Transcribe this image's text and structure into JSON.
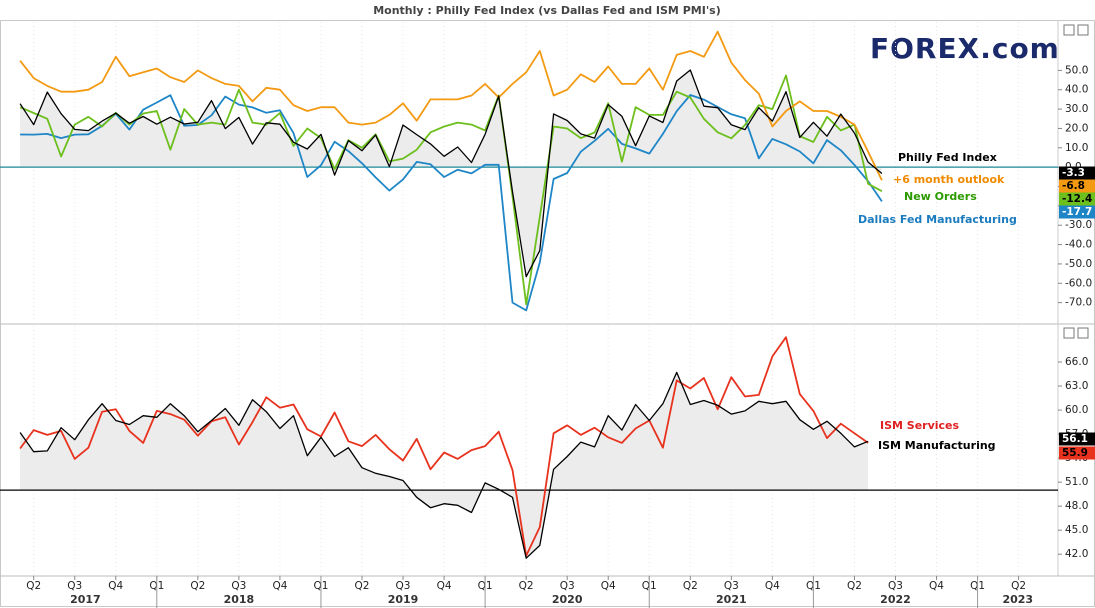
{
  "logo": "FOREX.com",
  "chart_data": [
    {
      "type": "line",
      "title": "Monthly : Philly Fed Index (vs Dallas Fed and ISM PMI's)",
      "x": [
        2017.167,
        2017.25,
        2017.333,
        2017.417,
        2017.5,
        2017.583,
        2017.667,
        2017.75,
        2017.833,
        2017.917,
        2018,
        2018.083,
        2018.167,
        2018.25,
        2018.333,
        2018.417,
        2018.5,
        2018.583,
        2018.667,
        2018.75,
        2018.833,
        2018.917,
        2019,
        2019.083,
        2019.167,
        2019.25,
        2019.333,
        2019.417,
        2019.5,
        2019.583,
        2019.667,
        2019.75,
        2019.833,
        2019.917,
        2020,
        2020.083,
        2020.167,
        2020.25,
        2020.333,
        2020.417,
        2020.5,
        2020.583,
        2020.667,
        2020.75,
        2020.833,
        2020.917,
        2021,
        2021.083,
        2021.167,
        2021.25,
        2021.333,
        2021.417,
        2021.5,
        2021.583,
        2021.667,
        2021.75,
        2021.833,
        2021.917,
        2022,
        2022.083,
        2022.167,
        2022.25,
        2022.333,
        2022.417
      ],
      "xlim": [
        2017.13,
        2023.49
      ],
      "ylim": [
        -80,
        75
      ],
      "yticks": [
        {
          "value": 50,
          "label": "50.0"
        },
        {
          "value": 40,
          "label": "40.0"
        },
        {
          "value": 30,
          "label": "30.0"
        },
        {
          "value": 20,
          "label": "20.0"
        },
        {
          "value": 10,
          "label": "10.0"
        },
        {
          "value": 0,
          "label": "0.0"
        },
        {
          "value": -10,
          "label": "-10.0"
        },
        {
          "value": -20,
          "label": "-20.0"
        },
        {
          "value": -30,
          "label": "-30.0"
        },
        {
          "value": -40,
          "label": "-40.0"
        },
        {
          "value": -50,
          "label": "-50.0"
        },
        {
          "value": -60,
          "label": "-60.0"
        },
        {
          "value": -70,
          "label": "-70.0"
        }
      ],
      "baseline": 0,
      "baseline_color": "#1a8a9a",
      "fill_series": 0,
      "fill_color": "#ececec",
      "series": [
        {
          "name": "Philly Fed Index",
          "color": "#000000",
          "label_color": "#000000",
          "values": [
            32.8,
            22,
            38.8,
            27.6,
            19.5,
            18.9,
            23.8,
            27.9,
            22.7,
            26.2,
            22.2,
            25.8,
            22.3,
            23.2,
            34.4,
            19.9,
            25.7,
            11.9,
            22.9,
            22.2,
            12.9,
            9.4,
            17,
            -4.1,
            13.7,
            8.5,
            16.6,
            0.3,
            21.8,
            16.8,
            12,
            5.6,
            10.4,
            2.4,
            17,
            36.7,
            -12.7,
            -56.6,
            -43.1,
            27.5,
            24.1,
            17.2,
            15,
            32.3,
            26.3,
            11.1,
            26.5,
            23.1,
            44.5,
            50.2,
            31.5,
            30.7,
            21.9,
            19.4,
            30.7,
            23.8,
            39,
            15.4,
            23.2,
            16,
            27.4,
            17.6,
            2.6,
            -3.3
          ]
        },
        {
          "name": "+6 month outlook",
          "color": "#f39a12",
          "label_color": "#f08a00",
          "values": [
            55,
            46,
            42,
            39,
            39,
            40,
            44,
            57,
            47,
            49,
            51,
            46.5,
            44,
            50,
            46,
            43,
            42,
            34,
            41,
            40,
            32,
            29,
            31,
            31,
            23,
            22,
            23,
            27,
            33,
            24,
            35,
            35,
            35,
            37,
            43,
            36,
            43,
            49,
            60,
            37,
            40,
            48,
            44,
            52,
            43,
            43,
            51,
            40,
            58,
            60,
            57,
            70,
            54,
            45,
            38,
            21,
            29,
            34,
            29,
            29,
            26,
            22,
            8,
            -6.8
          ]
        },
        {
          "name": "New Orders",
          "color": "#6cbf1c",
          "label_color": "#2c9a00",
          "values": [
            31,
            28,
            25,
            5.5,
            22,
            26,
            21,
            28.1,
            22,
            27.7,
            29,
            9,
            30,
            22,
            23,
            22,
            40,
            23,
            22,
            28,
            11,
            20,
            15,
            -1,
            14,
            10,
            17,
            3,
            4.4,
            9,
            18,
            21,
            23,
            22,
            19,
            37,
            -15,
            -70.9,
            -25.7,
            21,
            20,
            15,
            17.9,
            33,
            2.8,
            31,
            27,
            27,
            39,
            36,
            25,
            18,
            14.9,
            21.8,
            32,
            30,
            47.4,
            16,
            13,
            26,
            19,
            22,
            -8.6,
            -12.4
          ]
        },
        {
          "name": "Dallas Fed Manufacturing",
          "color": "#1e86c6",
          "label_color": "#1a7bbf",
          "values": [
            16.9,
            16.8,
            17.2,
            15,
            16.8,
            17,
            21.3,
            27.6,
            19.4,
            29.7,
            33.4,
            37.2,
            21.4,
            21.8,
            26.8,
            36.5,
            32.3,
            30.9,
            28.1,
            29.4,
            17.6,
            -5.1,
            1,
            13.1,
            8.3,
            2,
            -5.3,
            -12.1,
            -6.3,
            2.7,
            1.5,
            -5.1,
            -1.3,
            -3.2,
            1.2,
            1.2,
            -70,
            -74,
            -49.2,
            -6.1,
            -3,
            8,
            13.6,
            19.8,
            12,
            9.7,
            7,
            17.2,
            28.9,
            37.3,
            34.9,
            31.1,
            27.3,
            25.3,
            4.6,
            14.6,
            11.8,
            8.1,
            2,
            14,
            8.7,
            1.1,
            -7.3,
            -17.7
          ]
        }
      ]
    },
    {
      "type": "line",
      "x": [
        2017.167,
        2017.25,
        2017.333,
        2017.417,
        2017.5,
        2017.583,
        2017.667,
        2017.75,
        2017.833,
        2017.917,
        2018,
        2018.083,
        2018.167,
        2018.25,
        2018.333,
        2018.417,
        2018.5,
        2018.583,
        2018.667,
        2018.75,
        2018.833,
        2018.917,
        2019,
        2019.083,
        2019.167,
        2019.25,
        2019.333,
        2019.417,
        2019.5,
        2019.583,
        2019.667,
        2019.75,
        2019.833,
        2019.917,
        2020,
        2020.083,
        2020.167,
        2020.25,
        2020.333,
        2020.417,
        2020.5,
        2020.583,
        2020.667,
        2020.75,
        2020.833,
        2020.917,
        2021,
        2021.083,
        2021.167,
        2021.25,
        2021.333,
        2021.417,
        2021.5,
        2021.583,
        2021.667,
        2021.75,
        2021.833,
        2021.917,
        2022,
        2022.083,
        2022.167,
        2022.25,
        2022.333
      ],
      "xlim": [
        2017.13,
        2023.49
      ],
      "xticks": [
        {
          "value": 2017.25,
          "label": "Q2"
        },
        {
          "value": 2017.5,
          "label": "Q3"
        },
        {
          "value": 2017.75,
          "label": "Q4"
        },
        {
          "value": 2018,
          "label": "Q1"
        },
        {
          "value": 2018.25,
          "label": "Q2"
        },
        {
          "value": 2018.5,
          "label": "Q3"
        },
        {
          "value": 2018.75,
          "label": "Q4"
        },
        {
          "value": 2019,
          "label": "Q1"
        },
        {
          "value": 2019.25,
          "label": "Q2"
        },
        {
          "value": 2019.5,
          "label": "Q3"
        },
        {
          "value": 2019.75,
          "label": "Q4"
        },
        {
          "value": 2020,
          "label": "Q1"
        },
        {
          "value": 2020.25,
          "label": "Q2"
        },
        {
          "value": 2020.5,
          "label": "Q3"
        },
        {
          "value": 2020.75,
          "label": "Q4"
        },
        {
          "value": 2021,
          "label": "Q1"
        },
        {
          "value": 2021.25,
          "label": "Q2"
        },
        {
          "value": 2021.5,
          "label": "Q3"
        },
        {
          "value": 2021.75,
          "label": "Q4"
        },
        {
          "value": 2022,
          "label": "Q1"
        },
        {
          "value": 2022.25,
          "label": "Q2"
        },
        {
          "value": 2022.5,
          "label": "Q3"
        },
        {
          "value": 2022.75,
          "label": "Q4"
        },
        {
          "value": 2023,
          "label": "Q1"
        },
        {
          "value": 2023.25,
          "label": "Q2"
        }
      ],
      "year_ticks": [
        2017,
        2018,
        2019,
        2020,
        2021,
        2022,
        2023
      ],
      "ylim": [
        39.4,
        70.5
      ],
      "yticks": [
        {
          "value": 66,
          "label": "66.0"
        },
        {
          "value": 63,
          "label": "63.0"
        },
        {
          "value": 60,
          "label": "60.0"
        },
        {
          "value": 57,
          "label": "57.0"
        },
        {
          "value": 54,
          "label": "54.0"
        },
        {
          "value": 51,
          "label": "51.0"
        },
        {
          "value": 48,
          "label": "48.0"
        },
        {
          "value": 45,
          "label": "45.0"
        },
        {
          "value": 42,
          "label": "42.0"
        }
      ],
      "baseline": 50,
      "baseline_color": "#000000",
      "fill_series": 0,
      "fill_color": "#ececec",
      "series": [
        {
          "name": "ISM Manufacturing",
          "color": "#000000",
          "label_color": "#000000",
          "values": [
            57.2,
            54.8,
            54.9,
            57.8,
            56.3,
            58.8,
            60.8,
            58.7,
            58.2,
            59.3,
            59.1,
            60.8,
            59.3,
            57.3,
            58.7,
            60.2,
            58.1,
            61.3,
            59.8,
            57.7,
            59.3,
            54.3,
            56.6,
            54.2,
            55.3,
            52.8,
            52.1,
            51.7,
            51.2,
            49.1,
            47.8,
            48.3,
            48.1,
            47.2,
            50.9,
            50.1,
            49.1,
            41.5,
            43.1,
            52.6,
            54.2,
            56,
            55.4,
            59.3,
            57.5,
            60.7,
            58.7,
            60.8,
            64.7,
            60.7,
            61.2,
            60.6,
            59.5,
            59.9,
            61.1,
            60.8,
            61.1,
            58.8,
            57.6,
            58.6,
            57.1,
            55.4,
            56.1
          ]
        },
        {
          "name": "ISM Services",
          "color": "#e8321e",
          "label_color": "#e02020",
          "values": [
            55.2,
            57.5,
            56.9,
            57.4,
            53.9,
            55.3,
            59.8,
            60.1,
            57.4,
            55.9,
            59.9,
            59.5,
            58.8,
            56.8,
            58.6,
            59.1,
            55.7,
            58.5,
            61.6,
            60.3,
            60.7,
            57.6,
            56.7,
            59.7,
            56.1,
            55.5,
            56.9,
            55.1,
            53.7,
            56.4,
            52.6,
            54.7,
            53.9,
            55,
            55.5,
            57.3,
            52.5,
            41.8,
            45.4,
            57.1,
            58.1,
            56.9,
            57.8,
            56.6,
            55.9,
            57.7,
            58.7,
            55.3,
            63.7,
            62.7,
            64,
            60.1,
            64.1,
            61.7,
            61.9,
            66.7,
            69.1,
            62,
            59.9,
            56.5,
            58.3,
            57.1,
            55.9
          ]
        }
      ]
    }
  ]
}
